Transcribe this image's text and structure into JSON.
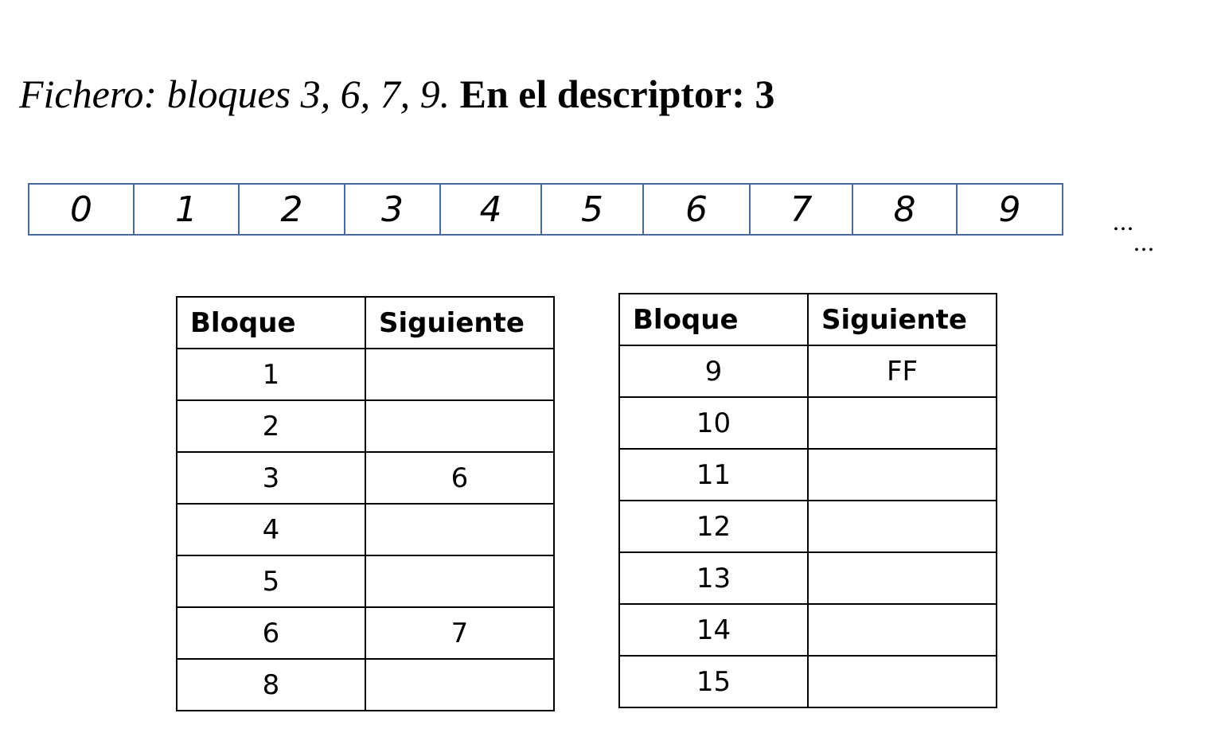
{
  "heading": {
    "italic_part": "Fichero: bloques 3, 6, 7, 9.",
    "bold_part": "En el descriptor: 3"
  },
  "block_strip": [
    "0",
    "1",
    "2",
    "3",
    "4",
    "5",
    "6",
    "7",
    "8",
    "9"
  ],
  "ellipsis": [
    "...",
    "..."
  ],
  "tables": [
    {
      "headers": [
        "Bloque",
        "Siguiente"
      ],
      "rows": [
        [
          "1",
          ""
        ],
        [
          "2",
          ""
        ],
        [
          "3",
          "6"
        ],
        [
          "4",
          ""
        ],
        [
          "5",
          ""
        ],
        [
          "6",
          "7"
        ],
        [
          "8",
          ""
        ]
      ]
    },
    {
      "headers": [
        "Bloque",
        "Siguiente"
      ],
      "rows": [
        [
          "9",
          "FF"
        ],
        [
          "10",
          ""
        ],
        [
          "11",
          ""
        ],
        [
          "12",
          ""
        ],
        [
          "13",
          ""
        ],
        [
          "14",
          ""
        ],
        [
          "15",
          ""
        ]
      ]
    }
  ]
}
